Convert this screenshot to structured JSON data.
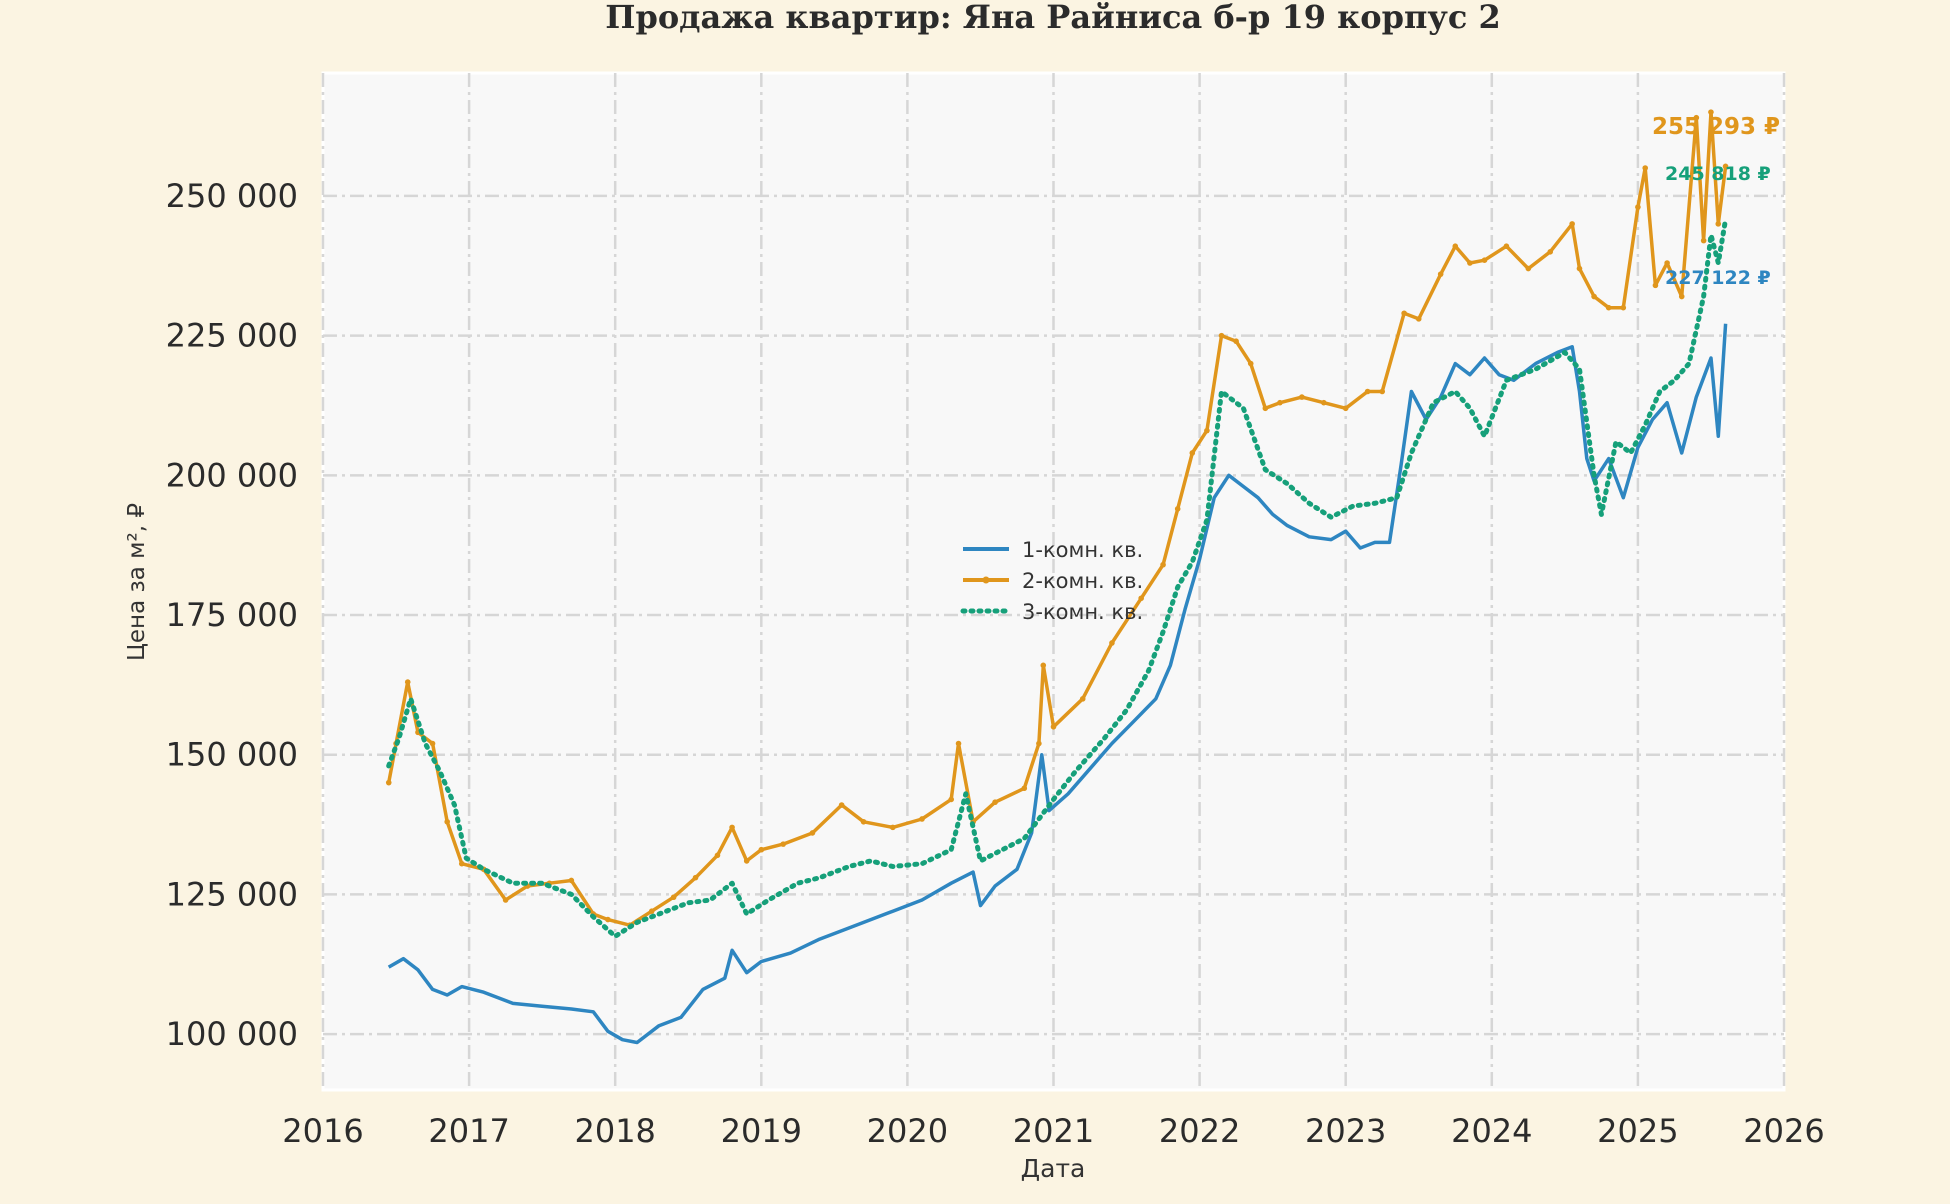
{
  "chart_data": {
    "type": "line",
    "title": "Продажа квартир: Яна Райниса б-р 19 корпус 2",
    "xlabel": "Дата",
    "ylabel": "Цена за м², ₽",
    "xlim": [
      2016.0,
      2026.0
    ],
    "ylim": [
      90000,
      272000
    ],
    "x_ticks": [
      "2016",
      "2017",
      "2018",
      "2019",
      "2020",
      "2021",
      "2022",
      "2023",
      "2024",
      "2025",
      "2026"
    ],
    "y_ticks": [
      "100 000",
      "125 000",
      "150 000",
      "175 000",
      "200 000",
      "225 000",
      "250 000"
    ],
    "y_tick_values": [
      100000,
      125000,
      150000,
      175000,
      200000,
      225000,
      250000
    ],
    "grid": true,
    "legend_position": "center",
    "series": [
      {
        "name": "1-комн. кв.",
        "color": "#2e86c1",
        "style": "solid",
        "end_label": "227 122 ₽",
        "x": [
          2016.45,
          2016.55,
          2016.65,
          2016.75,
          2016.85,
          2016.95,
          2017.1,
          2017.3,
          2017.5,
          2017.7,
          2017.85,
          2017.95,
          2018.05,
          2018.15,
          2018.3,
          2018.45,
          2018.6,
          2018.75,
          2018.8,
          2018.9,
          2019.0,
          2019.2,
          2019.4,
          2019.55,
          2019.7,
          2019.9,
          2020.1,
          2020.3,
          2020.45,
          2020.5,
          2020.6,
          2020.75,
          2020.85,
          2020.92,
          2020.97,
          2021.1,
          2021.25,
          2021.4,
          2021.55,
          2021.7,
          2021.8,
          2021.9,
          2022.0,
          2022.1,
          2022.2,
          2022.3,
          2022.4,
          2022.5,
          2022.6,
          2022.75,
          2022.9,
          2023.0,
          2023.1,
          2023.2,
          2023.3,
          2023.38,
          2023.45,
          2023.55,
          2023.65,
          2023.75,
          2023.85,
          2023.95,
          2024.05,
          2024.15,
          2024.3,
          2024.45,
          2024.55,
          2024.6,
          2024.65,
          2024.7,
          2024.8,
          2024.9,
          2025.0,
          2025.1,
          2025.2,
          2025.3,
          2025.4,
          2025.5,
          2025.55,
          2025.6
        ],
        "values": [
          112000,
          113500,
          111500,
          108000,
          107000,
          108500,
          107500,
          105500,
          105000,
          104500,
          104000,
          100500,
          99000,
          98500,
          101500,
          103000,
          108000,
          110000,
          115000,
          111000,
          113000,
          114500,
          117000,
          118500,
          120000,
          122000,
          124000,
          127000,
          129000,
          123000,
          126500,
          129500,
          136000,
          150000,
          140000,
          143000,
          147500,
          152000,
          156000,
          160000,
          166000,
          176000,
          185000,
          196000,
          200000,
          198000,
          196000,
          193000,
          191000,
          189000,
          188500,
          190000,
          187000,
          188000,
          188000,
          202000,
          215000,
          210000,
          214000,
          220000,
          218000,
          221000,
          218000,
          217000,
          220000,
          222000,
          223000,
          215000,
          203000,
          199000,
          203000,
          196000,
          205000,
          210000,
          213000,
          204000,
          214000,
          221000,
          207000,
          227122
        ]
      },
      {
        "name": "2-комн. кв.",
        "color": "#e0961c",
        "style": "solid-dots",
        "end_label": "255 293 ₽",
        "x": [
          2016.45,
          2016.5,
          2016.58,
          2016.65,
          2016.75,
          2016.85,
          2016.95,
          2017.1,
          2017.25,
          2017.4,
          2017.55,
          2017.7,
          2017.85,
          2017.95,
          2018.1,
          2018.25,
          2018.4,
          2018.55,
          2018.7,
          2018.8,
          2018.9,
          2019.0,
          2019.15,
          2019.35,
          2019.55,
          2019.7,
          2019.9,
          2020.1,
          2020.3,
          2020.35,
          2020.45,
          2020.6,
          2020.8,
          2020.9,
          2020.93,
          2021.0,
          2021.2,
          2021.4,
          2021.6,
          2021.75,
          2021.85,
          2021.95,
          2022.05,
          2022.15,
          2022.25,
          2022.35,
          2022.45,
          2022.55,
          2022.7,
          2022.85,
          2023.0,
          2023.15,
          2023.25,
          2023.4,
          2023.5,
          2023.65,
          2023.75,
          2023.85,
          2023.95,
          2024.1,
          2024.25,
          2024.4,
          2024.55,
          2024.6,
          2024.7,
          2024.8,
          2024.9,
          2025.0,
          2025.05,
          2025.12,
          2025.2,
          2025.3,
          2025.4,
          2025.45,
          2025.5,
          2025.55,
          2025.6
        ],
        "values": [
          145000,
          152000,
          163000,
          154000,
          152000,
          138000,
          130500,
          129500,
          124000,
          126500,
          127000,
          127500,
          121500,
          120500,
          119500,
          122000,
          124500,
          128000,
          132000,
          137000,
          131000,
          133000,
          134000,
          136000,
          141000,
          138000,
          137000,
          138500,
          142000,
          152000,
          138000,
          141500,
          144000,
          152000,
          166000,
          155000,
          160000,
          170000,
          178000,
          184000,
          194000,
          204000,
          208000,
          225000,
          224000,
          220000,
          212000,
          213000,
          214000,
          213000,
          212000,
          215000,
          215000,
          229000,
          228000,
          236000,
          241000,
          238000,
          238500,
          241000,
          237000,
          240000,
          245000,
          237000,
          232000,
          230000,
          230000,
          248000,
          255000,
          234000,
          238000,
          232000,
          264000,
          242000,
          265000,
          245000,
          255293
        ]
      },
      {
        "name": "3-комн. кв.",
        "color": "#16a07a",
        "style": "dotted",
        "end_label": "245 818 ₽",
        "x": [
          2016.45,
          2016.52,
          2016.6,
          2016.7,
          2016.8,
          2016.9,
          2016.98,
          2017.1,
          2017.3,
          2017.5,
          2017.7,
          2017.85,
          2018.0,
          2018.15,
          2018.3,
          2018.5,
          2018.65,
          2018.8,
          2018.9,
          2019.05,
          2019.25,
          2019.4,
          2019.6,
          2019.75,
          2019.9,
          2020.1,
          2020.3,
          2020.4,
          2020.5,
          2020.65,
          2020.8,
          2020.9,
          2021.0,
          2021.15,
          2021.35,
          2021.5,
          2021.65,
          2021.75,
          2021.85,
          2021.95,
          2022.05,
          2022.15,
          2022.3,
          2022.45,
          2022.6,
          2022.75,
          2022.9,
          2023.05,
          2023.2,
          2023.35,
          2023.45,
          2023.6,
          2023.75,
          2023.85,
          2023.95,
          2024.1,
          2024.3,
          2024.5,
          2024.6,
          2024.7,
          2024.75,
          2024.85,
          2024.95,
          2025.05,
          2025.15,
          2025.25,
          2025.35,
          2025.45,
          2025.5,
          2025.55,
          2025.6
        ],
        "values": [
          148000,
          153000,
          160000,
          152000,
          147000,
          141000,
          131500,
          129500,
          127000,
          127000,
          125000,
          121000,
          117500,
          120000,
          121500,
          123500,
          124000,
          127000,
          121500,
          124000,
          127000,
          128000,
          130000,
          131000,
          130000,
          130500,
          133000,
          143000,
          131000,
          133000,
          135000,
          138500,
          142000,
          147000,
          153000,
          158000,
          165000,
          172000,
          180000,
          184500,
          192000,
          215000,
          212000,
          201000,
          198500,
          195000,
          192500,
          194500,
          195000,
          196000,
          204000,
          213000,
          215000,
          212000,
          207000,
          217000,
          219000,
          222000,
          219000,
          200000,
          193000,
          206000,
          204000,
          209000,
          215000,
          217000,
          220000,
          232000,
          243000,
          238000,
          245818
        ]
      }
    ]
  }
}
